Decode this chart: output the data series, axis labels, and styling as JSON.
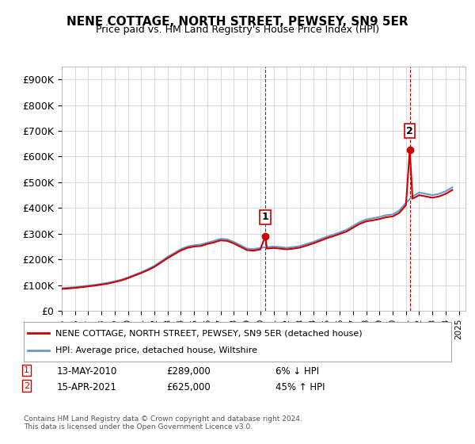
{
  "title": "NENE COTTAGE, NORTH STREET, PEWSEY, SN9 5ER",
  "subtitle": "Price paid vs. HM Land Registry's House Price Index (HPI)",
  "ylabel_ticks": [
    "£0",
    "£100K",
    "£200K",
    "£300K",
    "£400K",
    "£500K",
    "£600K",
    "£700K",
    "£800K",
    "£900K"
  ],
  "ytick_values": [
    0,
    100000,
    200000,
    300000,
    400000,
    500000,
    600000,
    700000,
    800000,
    900000
  ],
  "ylim": [
    0,
    950000
  ],
  "xlim_start": 1995.0,
  "xlim_end": 2025.5,
  "sale1_x": 2010.37,
  "sale1_y": 289000,
  "sale1_label": "1",
  "sale1_date": "13-MAY-2010",
  "sale1_price": "£289,000",
  "sale1_hpi": "6% ↓ HPI",
  "sale2_x": 2021.29,
  "sale2_y": 625000,
  "sale2_label": "2",
  "sale2_date": "15-APR-2021",
  "sale2_price": "£625,000",
  "sale2_hpi": "45% ↑ HPI",
  "line_color_red": "#cc0000",
  "line_color_blue": "#6699cc",
  "bg_color": "#ffffff",
  "grid_color": "#cccccc",
  "legend_label_red": "NENE COTTAGE, NORTH STREET, PEWSEY, SN9 5ER (detached house)",
  "legend_label_blue": "HPI: Average price, detached house, Wiltshire",
  "footer": "Contains HM Land Registry data © Crown copyright and database right 2024.\nThis data is licensed under the Open Government Licence v3.0.",
  "hpi_years": [
    1995,
    1995.5,
    1996,
    1996.5,
    1997,
    1997.5,
    1998,
    1998.5,
    1999,
    1999.5,
    2000,
    2000.5,
    2001,
    2001.5,
    2002,
    2002.5,
    2003,
    2003.5,
    2004,
    2004.5,
    2005,
    2005.5,
    2006,
    2006.5,
    2007,
    2007.5,
    2008,
    2008.5,
    2009,
    2009.5,
    2010,
    2010.5,
    2011,
    2011.5,
    2012,
    2012.5,
    2013,
    2013.5,
    2014,
    2014.5,
    2015,
    2015.5,
    2016,
    2016.5,
    2017,
    2017.5,
    2018,
    2018.5,
    2019,
    2019.5,
    2020,
    2020.5,
    2021,
    2021.5,
    2022,
    2022.5,
    2023,
    2023.5,
    2024,
    2024.5
  ],
  "hpi_values": [
    88000,
    90000,
    92000,
    95000,
    98000,
    101000,
    105000,
    109000,
    115000,
    121000,
    130000,
    140000,
    150000,
    162000,
    175000,
    192000,
    210000,
    225000,
    240000,
    250000,
    255000,
    258000,
    265000,
    272000,
    280000,
    278000,
    268000,
    255000,
    242000,
    240000,
    245000,
    248000,
    250000,
    248000,
    245000,
    248000,
    252000,
    260000,
    268000,
    278000,
    288000,
    296000,
    305000,
    315000,
    330000,
    345000,
    355000,
    360000,
    365000,
    372000,
    375000,
    390000,
    420000,
    445000,
    460000,
    455000,
    450000,
    455000,
    465000,
    480000
  ],
  "red_years": [
    1995,
    1995.5,
    1996,
    1996.5,
    1997,
    1997.5,
    1998,
    1998.5,
    1999,
    1999.5,
    2000,
    2000.5,
    2001,
    2001.5,
    2002,
    2002.5,
    2003,
    2003.5,
    2004,
    2004.5,
    2005,
    2005.5,
    2006,
    2006.5,
    2007,
    2007.5,
    2008,
    2008.5,
    2009,
    2009.5,
    2010,
    2010.37,
    2010.5,
    2011,
    2011.5,
    2012,
    2012.5,
    2013,
    2013.5,
    2014,
    2014.5,
    2015,
    2015.5,
    2016,
    2016.5,
    2017,
    2017.5,
    2018,
    2018.5,
    2019,
    2019.5,
    2020,
    2020.5,
    2021,
    2021.29,
    2021.5,
    2022,
    2022.5,
    2023,
    2023.5,
    2024,
    2024.5
  ],
  "red_values": [
    85000,
    87000,
    89000,
    92000,
    95000,
    98000,
    102000,
    106000,
    112000,
    118000,
    127000,
    137000,
    147000,
    158000,
    171000,
    188000,
    205000,
    220000,
    235000,
    245000,
    250000,
    252000,
    260000,
    266000,
    274000,
    272000,
    262000,
    249000,
    236000,
    234000,
    239000,
    289000,
    242000,
    244000,
    242000,
    239000,
    242000,
    246000,
    254000,
    262000,
    272000,
    282000,
    290000,
    299000,
    308000,
    323000,
    338000,
    348000,
    352000,
    357000,
    364000,
    367000,
    381000,
    411000,
    625000,
    436000,
    450000,
    445000,
    440000,
    445000,
    455000,
    470000
  ]
}
